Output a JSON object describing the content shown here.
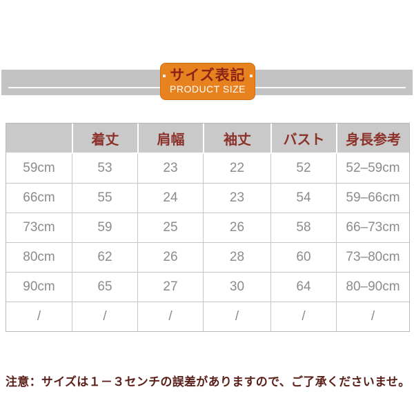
{
  "banner": {
    "band_color": "#c3c3c3",
    "badge": {
      "title_jp": "サイズ表記",
      "subtitle_en": "PRODUCT SIZE",
      "bg_color": "#e8821e",
      "title_color": "#8a2318",
      "subtitle_color": "#ffffff"
    }
  },
  "size_table": {
    "headers": [
      "",
      "着丈",
      "肩幅",
      "袖丈",
      "バスト",
      "身長参考"
    ],
    "rows": [
      [
        "59cm",
        "53",
        "23",
        "22",
        "52",
        "52–59cm"
      ],
      [
        "66cm",
        "55",
        "24",
        "23",
        "54",
        "59–66cm"
      ],
      [
        "73cm",
        "59",
        "25",
        "26",
        "58",
        "66–73cm"
      ],
      [
        "80cm",
        "62",
        "26",
        "28",
        "60",
        "73–80cm"
      ],
      [
        "90cm",
        "65",
        "27",
        "30",
        "64",
        "80–90cm"
      ],
      [
        "/",
        "/",
        "/",
        "/",
        "/",
        "/"
      ]
    ],
    "header_bg": "#c9c9c9",
    "header_text_color": "#8d322a",
    "body_text_color": "#8b8b8b"
  },
  "footnote": {
    "text": "注意：サイズは１－３センチの誤差がありますので、ご了承くださいませ。",
    "color": "#5a1f18"
  }
}
